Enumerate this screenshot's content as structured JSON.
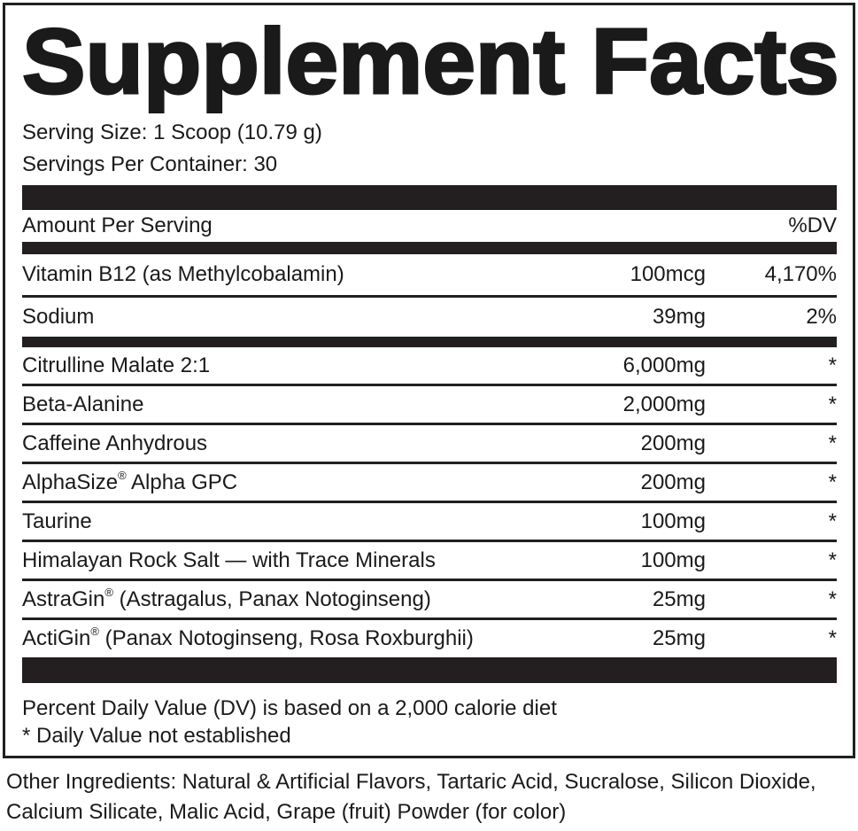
{
  "title": "Supplement Facts",
  "serving_size": "Serving Size: 1 Scoop (10.79 g)",
  "servings_per_container": "Servings Per Container: 30",
  "header": {
    "amount_label": "Amount Per Serving",
    "dv_label": "%DV"
  },
  "vitamins": [
    {
      "name": "Vitamin B12 (as Methylcobalamin)",
      "amount": "100mcg",
      "dv": "4,170%"
    },
    {
      "name": "Sodium",
      "amount": "39mg",
      "dv": "2%"
    }
  ],
  "ingredients": [
    {
      "name": "Citrulline Malate 2:1",
      "reg": "",
      "rest": "",
      "amount": "6,000mg",
      "dv": "*"
    },
    {
      "name": "Beta-Alanine",
      "reg": "",
      "rest": "",
      "amount": "2,000mg",
      "dv": "*"
    },
    {
      "name": "Caffeine Anhydrous",
      "reg": "",
      "rest": "",
      "amount": "200mg",
      "dv": "*"
    },
    {
      "name": "AlphaSize",
      "reg": "®",
      "rest": " Alpha GPC",
      "amount": "200mg",
      "dv": "*"
    },
    {
      "name": "Taurine",
      "reg": "",
      "rest": "",
      "amount": "100mg",
      "dv": "*"
    },
    {
      "name": "Himalayan Rock Salt — with Trace Minerals",
      "reg": "",
      "rest": "",
      "amount": "100mg",
      "dv": "*"
    },
    {
      "name": "AstraGin",
      "reg": "®",
      "rest": " (Astragalus, Panax Notoginseng)",
      "amount": "25mg",
      "dv": "*"
    },
    {
      "name": "ActiGin",
      "reg": "®",
      "rest": " (Panax Notoginseng, Rosa Roxburghii)",
      "amount": "25mg",
      "dv": "*"
    }
  ],
  "footnotes": [
    "Percent Daily Value (DV) is based on a 2,000 calorie diet",
    "* Daily Value not established"
  ],
  "other_ingredients": "Other Ingredients: Natural & Artificial Flavors, Tartaric Acid, Sucralose, Silicon Dioxide, Calcium Silicate, Malic Acid, Grape (fruit) Powder (for color)"
}
